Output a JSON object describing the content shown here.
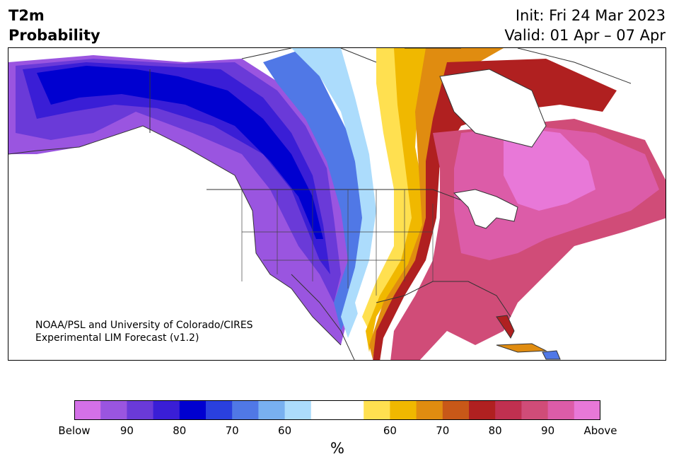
{
  "title": {
    "variable": "T2m",
    "product": "Probability",
    "init": "Init: Fri 24 Mar 2023",
    "valid": "Valid: 01 Apr – 07 Apr"
  },
  "credit": {
    "line1": "NOAA/PSL and University of Colorado/CIRES",
    "line2": "Experimental LIM Forecast (v1.2)"
  },
  "colorbar": {
    "unit": "%",
    "tick_labels": [
      "Below",
      "90",
      "80",
      "70",
      "60",
      "60",
      "70",
      "80",
      "90",
      "Above"
    ],
    "colors": [
      "#d470e8",
      "#9a55e0",
      "#6a3ad8",
      "#3a1ed6",
      "#0000d0",
      "#2a40de",
      "#5078e6",
      "#78b0f0",
      "#acdcfc",
      "#ffffff",
      "#ffffff",
      "#ffe050",
      "#f0b800",
      "#e08c10",
      "#c85818",
      "#b02020",
      "#c03050",
      "#d04c78",
      "#dc5ca8",
      "#e878d8"
    ]
  },
  "map": {
    "region": "North America",
    "below_colors": {
      "strong": "#0000d0",
      "mid": "#3a1ed6",
      "moderate": "#6a3ad8",
      "weak": "#9a55e0",
      "light_blue": "#acdcfc"
    },
    "above_colors": {
      "yellow": "#ffe050",
      "gold": "#f0b800",
      "orange": "#e08c10",
      "red": "#b02020",
      "pink": "#d04c78",
      "magenta": "#e878d8"
    }
  }
}
